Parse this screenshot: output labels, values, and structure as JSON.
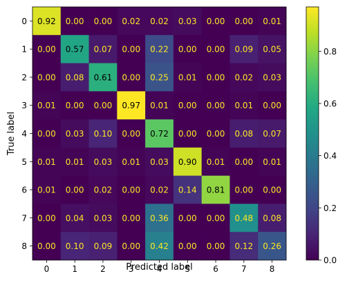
{
  "chart_data": {
    "type": "heatmap",
    "title": "",
    "xlabel": "Predicted label",
    "ylabel": "True label",
    "x_ticks": [
      "0",
      "1",
      "2",
      "3",
      "4",
      "5",
      "6",
      "7",
      "8"
    ],
    "y_ticks": [
      "0",
      "1",
      "2",
      "3",
      "4",
      "5",
      "6",
      "7",
      "8"
    ],
    "values": [
      [
        0.92,
        0.0,
        0.0,
        0.02,
        0.02,
        0.03,
        0.0,
        0.0,
        0.01
      ],
      [
        0.0,
        0.57,
        0.07,
        0.0,
        0.22,
        0.0,
        0.0,
        0.09,
        0.05
      ],
      [
        0.0,
        0.08,
        0.61,
        0.0,
        0.25,
        0.01,
        0.0,
        0.02,
        0.03
      ],
      [
        0.01,
        0.0,
        0.0,
        0.97,
        0.01,
        0.0,
        0.0,
        0.01,
        0.0
      ],
      [
        0.0,
        0.03,
        0.1,
        0.0,
        0.72,
        0.0,
        0.0,
        0.08,
        0.07
      ],
      [
        0.01,
        0.01,
        0.03,
        0.01,
        0.03,
        0.9,
        0.01,
        0.0,
        0.01
      ],
      [
        0.01,
        0.0,
        0.02,
        0.0,
        0.02,
        0.14,
        0.81,
        0.0,
        0.0
      ],
      [
        0.0,
        0.04,
        0.03,
        0.0,
        0.36,
        0.0,
        0.0,
        0.48,
        0.08
      ],
      [
        0.0,
        0.1,
        0.09,
        0.0,
        0.42,
        0.0,
        0.0,
        0.12,
        0.26
      ]
    ],
    "colormap": "viridis",
    "color_range": [
      0.0,
      0.97
    ],
    "colorbar_ticks": [
      "0.0",
      "0.2",
      "0.4",
      "0.6",
      "0.8"
    ],
    "colorbar_tick_values": [
      0.0,
      0.2,
      0.4,
      0.6,
      0.8
    ],
    "text_color_dark_cells": "#fde725",
    "text_color_light_cells": "#000000",
    "grid": false
  }
}
